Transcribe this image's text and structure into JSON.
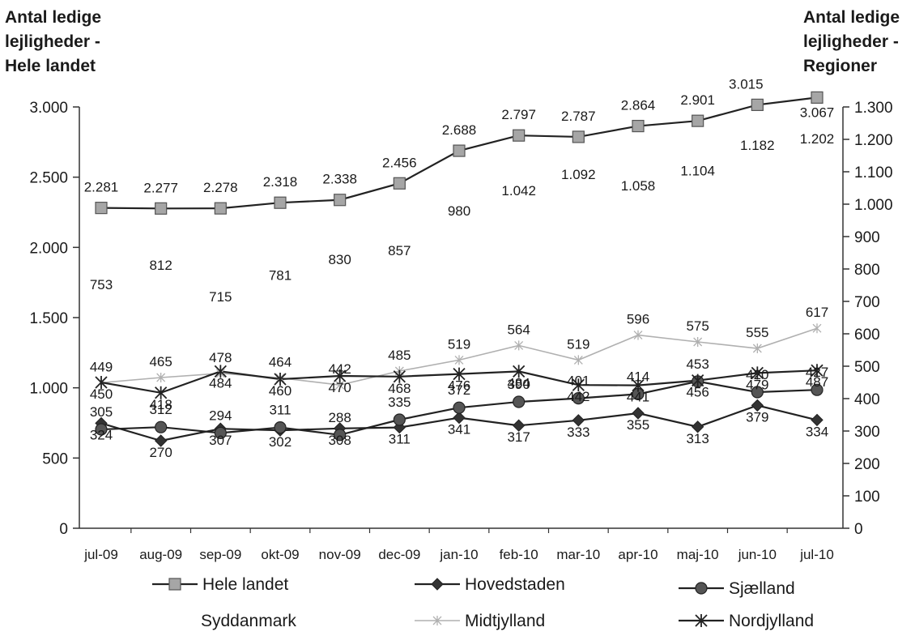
{
  "chart_data": {
    "type": "line",
    "title": "",
    "left_axis_title": [
      "Antal ledige",
      "lejligheder -",
      "Hele landet"
    ],
    "right_axis_title": [
      "Antal ledige",
      "lejligheder -",
      "Regioner"
    ],
    "categories": [
      "jul-09",
      "aug-09",
      "sep-09",
      "okt-09",
      "nov-09",
      "dec-09",
      "jan-10",
      "feb-10",
      "mar-10",
      "apr-10",
      "maj-10",
      "jun-10",
      "jul-10"
    ],
    "left_ylim": [
      0,
      3000
    ],
    "left_ticks": [
      0,
      500,
      1000,
      1500,
      2000,
      2500,
      3000
    ],
    "left_tick_labels": [
      "0",
      "500",
      "1.000",
      "1.500",
      "2.000",
      "2.500",
      "3.000"
    ],
    "right_ylim": [
      0,
      1300
    ],
    "right_ticks": [
      0,
      100,
      200,
      300,
      400,
      500,
      600,
      700,
      800,
      900,
      1000,
      1100,
      1200,
      1300
    ],
    "right_tick_labels": [
      "0",
      "100",
      "200",
      "300",
      "400",
      "500",
      "600",
      "700",
      "800",
      "900",
      "1.000",
      "1.100",
      "1.200",
      "1.300"
    ],
    "grid": false,
    "legend_position": "bottom",
    "series": [
      {
        "name": "Hele landet",
        "axis": "left",
        "color": "#222222",
        "marker": "square",
        "line": true,
        "values": [
          2281,
          2277,
          2278,
          2318,
          2338,
          2456,
          2688,
          2797,
          2787,
          2864,
          2901,
          3015,
          3067
        ],
        "labels": [
          "2.281",
          "2.277",
          "2.278",
          "2.318",
          "2.338",
          "2.456",
          "2.688",
          "2.797",
          "2.787",
          "2.864",
          "2.901",
          "3.015",
          "3.067"
        ]
      },
      {
        "name": "Hovedstaden",
        "axis": "right",
        "color": "#222222",
        "marker": "diamond",
        "line": true,
        "values": [
          324,
          270,
          307,
          302,
          308,
          311,
          341,
          317,
          333,
          355,
          313,
          379,
          334
        ],
        "labels": [
          "324",
          "270",
          "307",
          "302",
          "308",
          "311",
          "341",
          "317",
          "333",
          "355",
          "313",
          "379",
          "334"
        ]
      },
      {
        "name": "Sjælland",
        "axis": "right",
        "color": "#222222",
        "marker": "circle",
        "line": true,
        "values": [
          305,
          312,
          294,
          311,
          288,
          335,
          372,
          390,
          401,
          414,
          453,
          420,
          427
        ],
        "labels": [
          "305",
          "312",
          "294",
          "311",
          "288",
          "335",
          "372",
          "390",
          "401",
          "414",
          "453",
          "420",
          "427"
        ]
      },
      {
        "name": "Syddanmark",
        "axis": "right",
        "color": "#ffffff",
        "marker": "none",
        "line": false,
        "values": [
          753,
          812,
          715,
          781,
          830,
          857,
          980,
          1042,
          1092,
          1058,
          1104,
          1182,
          1202
        ],
        "labels": [
          "753",
          "812",
          "715",
          "781",
          "830",
          "857",
          "980",
          "1.042",
          "1.092",
          "1.058",
          "1.104",
          "1.182",
          "1.202"
        ]
      },
      {
        "name": "Midtjylland",
        "axis": "right",
        "color": "#b0b0b0",
        "marker": "star",
        "line": true,
        "values": [
          449,
          465,
          478,
          464,
          442,
          485,
          519,
          564,
          519,
          596,
          575,
          555,
          617
        ],
        "labels": [
          "449",
          "465",
          "478",
          "464",
          "442",
          "485",
          "519",
          "564",
          "519",
          "596",
          "575",
          "555",
          "617"
        ]
      },
      {
        "name": "Nordjylland",
        "axis": "right",
        "color": "#222222",
        "marker": "asterisk",
        "line": true,
        "values": [
          450,
          418,
          484,
          460,
          470,
          468,
          476,
          484,
          442,
          441,
          456,
          479,
          487
        ],
        "labels": [
          "450",
          "418",
          "484",
          "460",
          "470",
          "468",
          "476",
          "484",
          "442",
          "441",
          "456",
          "479",
          "487"
        ]
      }
    ]
  }
}
